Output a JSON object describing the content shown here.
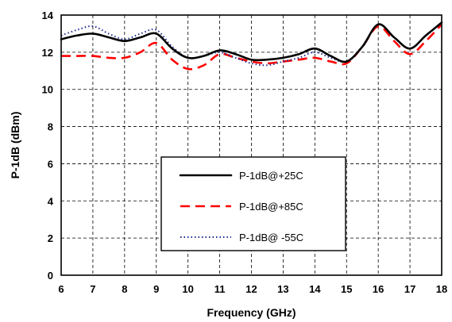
{
  "chart_data": {
    "type": "line",
    "title": "",
    "xlabel": "Frequency (GHz)",
    "ylabel": "P-1dB (dBm)",
    "xlim": [
      6,
      18
    ],
    "ylim": [
      0,
      14
    ],
    "xticks": [
      "6",
      "7",
      "8",
      "9",
      "10",
      "11",
      "12",
      "13",
      "14",
      "15",
      "16",
      "17",
      "18"
    ],
    "yticks": [
      "0",
      "2",
      "4",
      "6",
      "8",
      "10",
      "12",
      "14"
    ],
    "grid": "dashed",
    "legend_position": "center-bottom",
    "series": [
      {
        "name": "P-1dB@+25C",
        "style": "solid",
        "color": "#000000",
        "x": [
          6,
          6.5,
          7,
          7.5,
          8,
          8.5,
          9,
          9.5,
          10,
          10.5,
          11,
          11.5,
          12,
          12.5,
          13,
          13.5,
          14,
          14.5,
          15,
          15.5,
          16,
          16.5,
          17,
          17.5,
          18
        ],
        "y": [
          12.7,
          12.9,
          13.0,
          12.8,
          12.6,
          12.8,
          13.0,
          12.2,
          11.7,
          11.8,
          12.1,
          11.9,
          11.6,
          11.6,
          11.7,
          11.9,
          12.2,
          11.8,
          11.5,
          12.3,
          13.5,
          12.8,
          12.2,
          12.9,
          13.6
        ]
      },
      {
        "name": "P-1dB@+85C",
        "style": "dashed",
        "color": "#ff0000",
        "x": [
          6,
          6.5,
          7,
          7.5,
          8,
          8.5,
          9,
          9.5,
          10,
          10.5,
          11,
          11.5,
          12,
          12.5,
          13,
          13.5,
          14,
          14.5,
          15,
          15.5,
          16,
          16.5,
          17,
          17.5,
          18
        ],
        "y": [
          11.8,
          11.8,
          11.8,
          11.7,
          11.7,
          12.0,
          12.5,
          11.6,
          11.1,
          11.3,
          11.9,
          11.7,
          11.5,
          11.4,
          11.5,
          11.6,
          11.7,
          11.5,
          11.4,
          12.3,
          13.4,
          12.6,
          11.9,
          12.6,
          13.5
        ]
      },
      {
        "name": "P-1dB@ -55C",
        "style": "dotted",
        "color": "#1c2b8f",
        "x": [
          6,
          6.5,
          7,
          7.5,
          8,
          8.5,
          9,
          9.5,
          10,
          10.5,
          11,
          11.5,
          12,
          12.5,
          13,
          13.5,
          14,
          14.5,
          15,
          15.5,
          16,
          16.5,
          17,
          17.5,
          18
        ],
        "y": [
          12.9,
          13.2,
          13.4,
          13.0,
          12.7,
          13.0,
          13.2,
          12.3,
          11.7,
          11.8,
          12.0,
          11.7,
          11.4,
          11.3,
          11.5,
          11.7,
          12.0,
          11.7,
          11.5,
          12.3,
          13.5,
          12.8,
          12.2,
          12.9,
          13.6
        ]
      }
    ]
  }
}
